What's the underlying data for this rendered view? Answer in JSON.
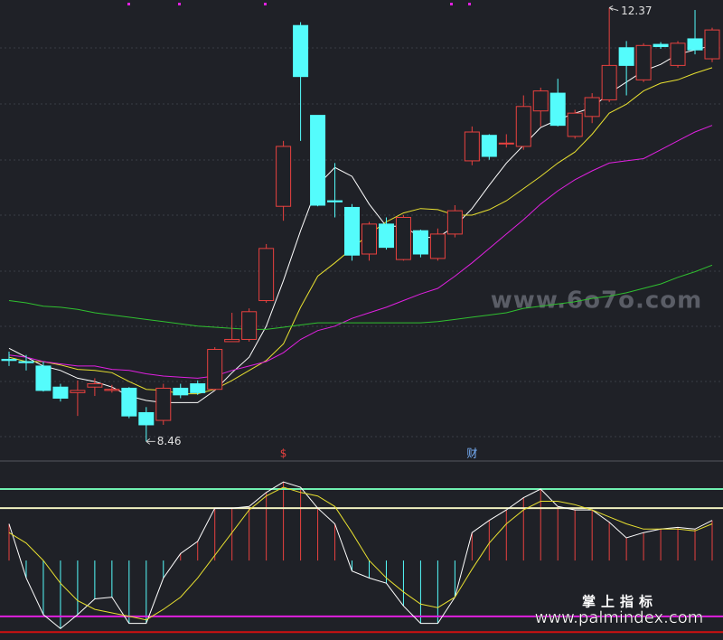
{
  "chart_data": [
    {
      "type": "candlestick",
      "up_color": "#e8413f",
      "down_color": "#54fcfc",
      "ylim": [
        8.3,
        12.44
      ],
      "open": [
        9.2,
        9.18,
        9.14,
        8.95,
        8.9,
        8.95,
        8.92,
        8.94,
        8.72,
        8.65,
        8.94,
        8.98,
        8.93,
        9.36,
        9.38,
        9.73,
        10.58,
        12.21,
        11.4,
        10.63,
        10.57,
        10.15,
        10.42,
        10.1,
        10.36,
        10.11,
        10.33,
        10.99,
        11.22,
        11.15,
        11.12,
        11.44,
        11.6,
        11.21,
        11.39,
        11.54,
        12.01,
        11.72,
        12.04,
        11.85,
        12.09,
        11.91
      ],
      "high": [
        9.27,
        9.24,
        9.18,
        8.98,
        9.01,
        9.03,
        8.97,
        8.95,
        8.77,
        8.98,
        8.98,
        9.01,
        9.31,
        9.62,
        9.66,
        10.24,
        11.17,
        12.24,
        11.4,
        10.97,
        10.6,
        10.44,
        10.48,
        10.5,
        10.37,
        10.38,
        10.59,
        11.3,
        11.23,
        11.23,
        11.58,
        11.65,
        11.73,
        11.45,
        11.6,
        12.37,
        12.07,
        12.05,
        12.06,
        12.07,
        12.35,
        12.19
      ],
      "low": [
        9.14,
        9.1,
        8.91,
        8.82,
        8.69,
        8.87,
        8.9,
        8.67,
        8.46,
        8.61,
        8.85,
        8.88,
        8.92,
        9.36,
        9.36,
        9.71,
        10.45,
        11.17,
        10.58,
        10.48,
        10.09,
        10.09,
        10.19,
        10.09,
        10.12,
        10.09,
        10.3,
        10.95,
        11.0,
        11.11,
        11.09,
        11.3,
        11.3,
        11.19,
        11.33,
        11.52,
        11.58,
        11.7,
        12.0,
        11.83,
        11.95,
        11.88
      ],
      "close": [
        9.19,
        9.17,
        8.92,
        8.85,
        8.92,
        8.98,
        8.93,
        8.69,
        8.61,
        8.94,
        8.88,
        8.9,
        9.29,
        9.38,
        9.63,
        10.2,
        11.12,
        11.75,
        10.59,
        10.62,
        10.14,
        10.42,
        10.21,
        10.48,
        10.15,
        10.33,
        10.54,
        11.25,
        11.03,
        11.15,
        11.48,
        11.62,
        11.31,
        11.42,
        11.56,
        11.85,
        11.85,
        12.03,
        12.02,
        12.05,
        11.99,
        12.17
      ],
      "series": [
        {
          "color": "#ffffff",
          "values": [
            9.3,
            9.22,
            9.14,
            9.1,
            9.03,
            9.0,
            8.95,
            8.87,
            8.83,
            8.81,
            8.81,
            8.81,
            8.92,
            9.08,
            9.22,
            9.5,
            9.91,
            10.36,
            10.77,
            10.93,
            10.85,
            10.6,
            10.4,
            10.4,
            10.3,
            10.3,
            10.4,
            10.56,
            10.77,
            10.97,
            11.13,
            11.29,
            11.36,
            11.42,
            11.47,
            11.6,
            11.7,
            11.8,
            11.86,
            11.95,
            11.99,
            12.03
          ]
        },
        {
          "color": "#e8e030",
          "values": [
            9.22,
            9.18,
            9.18,
            9.15,
            9.11,
            9.1,
            9.08,
            9.0,
            8.93,
            8.92,
            8.89,
            8.89,
            8.93,
            9.01,
            9.1,
            9.19,
            9.34,
            9.67,
            9.95,
            10.07,
            10.2,
            10.33,
            10.44,
            10.52,
            10.56,
            10.55,
            10.5,
            10.5,
            10.55,
            10.63,
            10.74,
            10.85,
            10.97,
            11.07,
            11.23,
            11.42,
            11.5,
            11.62,
            11.69,
            11.72,
            11.78,
            11.83
          ]
        },
        {
          "color": "#e020e0",
          "values": [
            9.24,
            9.22,
            9.18,
            9.16,
            9.14,
            9.14,
            9.11,
            9.1,
            9.07,
            9.05,
            9.04,
            9.03,
            9.05,
            9.1,
            9.14,
            9.18,
            9.26,
            9.38,
            9.46,
            9.5,
            9.57,
            9.62,
            9.67,
            9.73,
            9.79,
            9.84,
            9.95,
            10.07,
            10.2,
            10.33,
            10.46,
            10.6,
            10.72,
            10.82,
            10.9,
            10.97,
            10.99,
            11.01,
            11.09,
            11.17,
            11.25,
            11.31
          ]
        },
        {
          "color": "#30c030",
          "values": [
            9.73,
            9.71,
            9.68,
            9.67,
            9.65,
            9.62,
            9.6,
            9.58,
            9.56,
            9.54,
            9.52,
            9.5,
            9.49,
            9.48,
            9.47,
            9.47,
            9.49,
            9.51,
            9.53,
            9.53,
            9.53,
            9.53,
            9.53,
            9.53,
            9.53,
            9.54,
            9.56,
            9.58,
            9.6,
            9.62,
            9.66,
            9.68,
            9.7,
            9.72,
            9.75,
            9.77,
            9.8,
            9.84,
            9.88,
            9.94,
            9.99,
            10.05
          ]
        }
      ],
      "max_label": "12.37",
      "min_label": "8.46",
      "event_markers": [
        null,
        null,
        null,
        null,
        null,
        null,
        null,
        null,
        null,
        null,
        null,
        null,
        null,
        null,
        null,
        null,
        {
          "label": "$",
          "color": "#e8413f"
        },
        null,
        null,
        null,
        null,
        null,
        null,
        null,
        null,
        null,
        null,
        {
          "label": "财",
          "color": "#7ab4ff"
        },
        null,
        null,
        null,
        null,
        null,
        null,
        null,
        null,
        null,
        null,
        null,
        null,
        null,
        null
      ]
    },
    {
      "type": "oscillator",
      "ylim": [
        0,
        100
      ],
      "baseline": 44,
      "up_color": "#e8413f",
      "down_color": "#54fcfc",
      "levels": [
        {
          "value": 85,
          "color": "#6ff0b0"
        },
        {
          "value": 74,
          "color": "#f0f0c0"
        },
        {
          "value": 12,
          "color": "#e020e0"
        },
        {
          "value": 3,
          "color": "#d01010"
        }
      ],
      "series": [
        {
          "color": "#ffffff",
          "values": [
            65,
            34,
            13,
            5,
            13,
            22,
            23,
            8,
            8,
            34,
            48,
            55,
            74,
            74,
            75,
            83,
            89,
            86,
            74,
            65,
            38,
            34,
            31,
            18,
            8,
            8,
            23,
            60,
            67,
            73,
            80,
            85,
            75,
            73,
            73,
            66,
            57,
            60,
            62,
            63,
            62,
            67
          ]
        },
        {
          "color": "#e8e030",
          "values": [
            60,
            54,
            44,
            31,
            21,
            16,
            14,
            12,
            10,
            16,
            23,
            34,
            47,
            60,
            73,
            81,
            86,
            83,
            81,
            75,
            60,
            44,
            34,
            26,
            19,
            17,
            23,
            39,
            54,
            65,
            73,
            78,
            78,
            76,
            73,
            69,
            65,
            62,
            62,
            62,
            61,
            65
          ]
        }
      ]
    }
  ],
  "watermarks": {
    "site": "www.6o7o.com",
    "brand": "掌上指标",
    "url": "www.palmindex.com"
  }
}
